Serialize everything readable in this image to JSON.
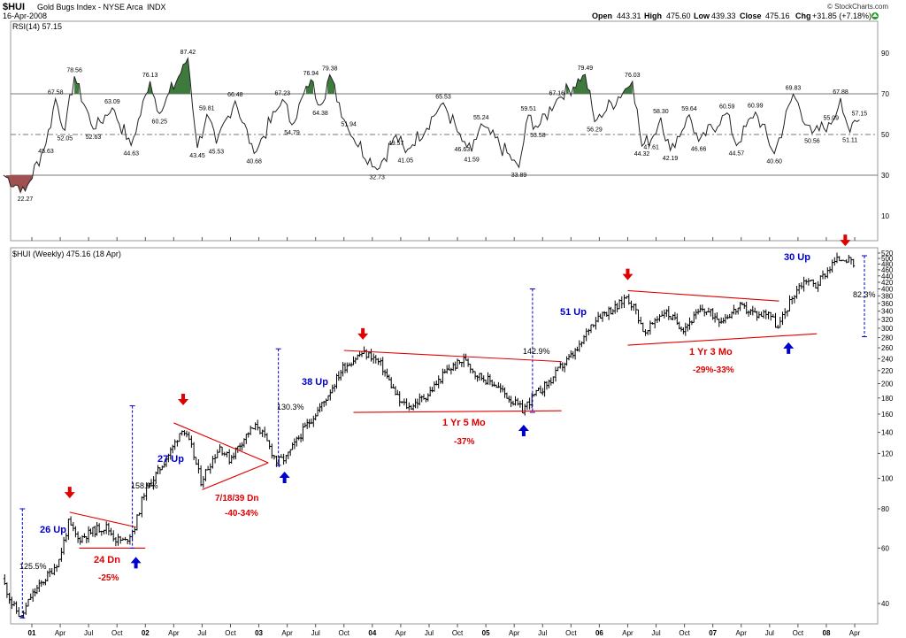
{
  "header": {
    "symbol": "$HUI",
    "name": "Gold Bugs Index - NYSE Arca",
    "exchange": "INDX",
    "date": "16-Apr-2008",
    "open_label": "Open",
    "open": "443.31",
    "high_label": "High",
    "high": "475.60",
    "low_label": "Low",
    "low": "439.33",
    "close_label": "Close",
    "close": "475.16",
    "chg_label": "Chg",
    "chg": "+31.85 (+7.18%)",
    "credit": "© StockCharts.com"
  },
  "rsi_panel": {
    "label": "RSI(14) 57.15",
    "axis_ticks": [
      "90",
      "70",
      "50",
      "30",
      "10"
    ]
  },
  "price_panel": {
    "label": "$HUI (Weekly) 475.16 (18 Apr)",
    "axis_ticks": [
      "520",
      "500",
      "480",
      "460",
      "440",
      "420",
      "400",
      "380",
      "360",
      "340",
      "320",
      "300",
      "280",
      "260",
      "240",
      "220",
      "200",
      "180",
      "160",
      "140",
      "120",
      "100",
      "80",
      "60",
      "40"
    ]
  },
  "x_ticks": [
    "01",
    "Apr",
    "Jul",
    "Oct",
    "02",
    "Apr",
    "Jul",
    "Oct",
    "03",
    "Apr",
    "Jul",
    "Oct",
    "04",
    "Apr",
    "Jul",
    "Oct",
    "05",
    "Apr",
    "Jul",
    "Oct",
    "06",
    "Apr",
    "Jul",
    "Oct",
    "07",
    "Apr",
    "Jul",
    "Oct",
    "08",
    "Apr"
  ],
  "chart_data": [
    {
      "type": "line",
      "title": "RSI(14) 57.15",
      "ylim": [
        0,
        100
      ],
      "reference_lines": [
        70,
        50,
        30
      ],
      "labeled_points": [
        {
          "date": "2001-01",
          "value": 22.27
        },
        {
          "date": "2001-02",
          "value": 45.63
        },
        {
          "date": "2001-03",
          "value": 67.58
        },
        {
          "date": "2001-04",
          "value": 52.05
        },
        {
          "date": "2001-05",
          "value": 78.56
        },
        {
          "date": "2001-07",
          "value": 52.63
        },
        {
          "date": "2001-09",
          "value": 63.09
        },
        {
          "date": "2001-11",
          "value": 44.63
        },
        {
          "date": "2002-01",
          "value": 76.13
        },
        {
          "date": "2002-02",
          "value": 60.25
        },
        {
          "date": "2002-05",
          "value": 87.42
        },
        {
          "date": "2002-06",
          "value": 43.45
        },
        {
          "date": "2002-07",
          "value": 59.81
        },
        {
          "date": "2002-08",
          "value": 45.53
        },
        {
          "date": "2002-10",
          "value": 66.48
        },
        {
          "date": "2002-12",
          "value": 40.68
        },
        {
          "date": "2003-03",
          "value": 67.23
        },
        {
          "date": "2003-04",
          "value": 54.79
        },
        {
          "date": "2003-06",
          "value": 76.94
        },
        {
          "date": "2003-07",
          "value": 64.38
        },
        {
          "date": "2003-08",
          "value": 79.38
        },
        {
          "date": "2003-10",
          "value": 51.94
        },
        {
          "date": "2004-01",
          "value": 32.73
        },
        {
          "date": "2004-03",
          "value": 49.57
        },
        {
          "date": "2004-04",
          "value": 41.05
        },
        {
          "date": "2004-08",
          "value": 65.53
        },
        {
          "date": "2004-10",
          "value": 46.63
        },
        {
          "date": "2004-11",
          "value": 41.59
        },
        {
          "date": "2004-12",
          "value": 55.24
        },
        {
          "date": "2005-04",
          "value": 33.89
        },
        {
          "date": "2005-05",
          "value": 59.51
        },
        {
          "date": "2005-06",
          "value": 53.58
        },
        {
          "date": "2005-08",
          "value": 67.16
        },
        {
          "date": "2005-11",
          "value": 79.49
        },
        {
          "date": "2005-12",
          "value": 56.29
        },
        {
          "date": "2006-04",
          "value": 76.03
        },
        {
          "date": "2006-05",
          "value": 44.32
        },
        {
          "date": "2006-06",
          "value": 47.61
        },
        {
          "date": "2006-07",
          "value": 58.3
        },
        {
          "date": "2006-08",
          "value": 42.19
        },
        {
          "date": "2006-10",
          "value": 59.64
        },
        {
          "date": "2006-11",
          "value": 46.66
        },
        {
          "date": "2007-02",
          "value": 60.59
        },
        {
          "date": "2007-03",
          "value": 44.57
        },
        {
          "date": "2007-05",
          "value": 60.99
        },
        {
          "date": "2007-07",
          "value": 40.6
        },
        {
          "date": "2007-09",
          "value": 69.83
        },
        {
          "date": "2007-11",
          "value": 50.56
        },
        {
          "date": "2008-01",
          "value": 55.09
        },
        {
          "date": "2008-02",
          "value": 67.88
        },
        {
          "date": "2008-03",
          "value": 51.11
        },
        {
          "date": "2008-04",
          "value": 57.15
        }
      ]
    },
    {
      "type": "bar",
      "title": "$HUI (Weekly) 475.16 (18 Apr)",
      "scale": "log",
      "ylim": [
        35,
        530
      ],
      "x_range": [
        "2000-10",
        "2008-04"
      ],
      "price_path": [
        {
          "date": "2000-10",
          "value": 48
        },
        {
          "date": "2000-11",
          "value": 40
        },
        {
          "date": "2000-12",
          "value": 36
        },
        {
          "date": "2001-01",
          "value": 42
        },
        {
          "date": "2001-03",
          "value": 50
        },
        {
          "date": "2001-04",
          "value": 55
        },
        {
          "date": "2001-05",
          "value": 72
        },
        {
          "date": "2001-06",
          "value": 64
        },
        {
          "date": "2001-08",
          "value": 69
        },
        {
          "date": "2001-09",
          "value": 70
        },
        {
          "date": "2001-10",
          "value": 64
        },
        {
          "date": "2001-11",
          "value": 63
        },
        {
          "date": "2001-12",
          "value": 70
        },
        {
          "date": "2002-01",
          "value": 90
        },
        {
          "date": "2002-02",
          "value": 100
        },
        {
          "date": "2002-04",
          "value": 125
        },
        {
          "date": "2002-05",
          "value": 145
        },
        {
          "date": "2002-06",
          "value": 125
        },
        {
          "date": "2002-07",
          "value": 98
        },
        {
          "date": "2002-08",
          "value": 112
        },
        {
          "date": "2002-09",
          "value": 126
        },
        {
          "date": "2002-10",
          "value": 115
        },
        {
          "date": "2002-12",
          "value": 140
        },
        {
          "date": "2003-01",
          "value": 147
        },
        {
          "date": "2003-02",
          "value": 130
        },
        {
          "date": "2003-03",
          "value": 113
        },
        {
          "date": "2003-04",
          "value": 116
        },
        {
          "date": "2003-06",
          "value": 145
        },
        {
          "date": "2003-08",
          "value": 175
        },
        {
          "date": "2003-10",
          "value": 225
        },
        {
          "date": "2003-12",
          "value": 250
        },
        {
          "date": "2004-01",
          "value": 245
        },
        {
          "date": "2004-02",
          "value": 230
        },
        {
          "date": "2004-04",
          "value": 175
        },
        {
          "date": "2004-05",
          "value": 168
        },
        {
          "date": "2004-07",
          "value": 185
        },
        {
          "date": "2004-09",
          "value": 220
        },
        {
          "date": "2004-11",
          "value": 240
        },
        {
          "date": "2004-12",
          "value": 215
        },
        {
          "date": "2005-02",
          "value": 200
        },
        {
          "date": "2005-04",
          "value": 175
        },
        {
          "date": "2005-05",
          "value": 165
        },
        {
          "date": "2005-06",
          "value": 180
        },
        {
          "date": "2005-08",
          "value": 205
        },
        {
          "date": "2005-09",
          "value": 225
        },
        {
          "date": "2005-11",
          "value": 260
        },
        {
          "date": "2005-12",
          "value": 300
        },
        {
          "date": "2006-01",
          "value": 330
        },
        {
          "date": "2006-03",
          "value": 350
        },
        {
          "date": "2006-04",
          "value": 380
        },
        {
          "date": "2006-05",
          "value": 340
        },
        {
          "date": "2006-06",
          "value": 285
        },
        {
          "date": "2006-07",
          "value": 320
        },
        {
          "date": "2006-08",
          "value": 340
        },
        {
          "date": "2006-10",
          "value": 300
        },
        {
          "date": "2006-12",
          "value": 345
        },
        {
          "date": "2007-02",
          "value": 320
        },
        {
          "date": "2007-04",
          "value": 350
        },
        {
          "date": "2007-06",
          "value": 330
        },
        {
          "date": "2007-07",
          "value": 340
        },
        {
          "date": "2007-08",
          "value": 300
        },
        {
          "date": "2007-09",
          "value": 350
        },
        {
          "date": "2007-10",
          "value": 400
        },
        {
          "date": "2007-11",
          "value": 430
        },
        {
          "date": "2007-12",
          "value": 410
        },
        {
          "date": "2008-01",
          "value": 450
        },
        {
          "date": "2008-02",
          "value": 490
        },
        {
          "date": "2008-03",
          "value": 505
        },
        {
          "date": "2008-04",
          "value": 475
        }
      ],
      "annotations": [
        {
          "text": "26 Up",
          "color": "#0000cc"
        },
        {
          "text": "125.5%",
          "color": "#000000"
        },
        {
          "text": "24 Dn",
          "color": "#e00000"
        },
        {
          "text": "-25%",
          "color": "#e00000"
        },
        {
          "text": "158.9%",
          "color": "#000000"
        },
        {
          "text": "27 Up",
          "color": "#0000cc"
        },
        {
          "text": "7/18/39 Dn",
          "color": "#e00000"
        },
        {
          "text": "-40-34%",
          "color": "#e00000"
        },
        {
          "text": "130.3%",
          "color": "#000000"
        },
        {
          "text": "38 Up",
          "color": "#0000cc"
        },
        {
          "text": "1 Yr 5 Mo",
          "color": "#e00000"
        },
        {
          "text": "-37%",
          "color": "#e00000"
        },
        {
          "text": "142.9%",
          "color": "#000000"
        },
        {
          "text": "51 Up",
          "color": "#0000cc"
        },
        {
          "text": "1 Yr 3 Mo",
          "color": "#e00000"
        },
        {
          "text": "-29%-33%",
          "color": "#e00000"
        },
        {
          "text": "30 Up",
          "color": "#0000cc"
        },
        {
          "text": "82.3%",
          "color": "#000000"
        }
      ],
      "trendlines": [
        {
          "from": {
            "date": "2001-05",
            "value": 78
          },
          "to": {
            "date": "2001-12",
            "value": 70
          }
        },
        {
          "from": {
            "date": "2001-06",
            "value": 60
          },
          "to": {
            "date": "2002-01",
            "value": 60
          }
        },
        {
          "from": {
            "date": "2002-04",
            "value": 150
          },
          "to": {
            "date": "2003-02",
            "value": 112
          }
        },
        {
          "from": {
            "date": "2002-07",
            "value": 92
          },
          "to": {
            "date": "2003-02",
            "value": 112
          }
        },
        {
          "from": {
            "date": "2003-10",
            "value": 255
          },
          "to": {
            "date": "2005-09",
            "value": 235
          }
        },
        {
          "from": {
            "date": "2003-11",
            "value": 162
          },
          "to": {
            "date": "2005-09",
            "value": 164
          }
        },
        {
          "from": {
            "date": "2006-04",
            "value": 395
          },
          "to": {
            "date": "2007-08",
            "value": 366
          }
        },
        {
          "from": {
            "date": "2006-04",
            "value": 265
          },
          "to": {
            "date": "2007-12",
            "value": 288
          }
        }
      ],
      "up_arrows": [
        "2001-12",
        "2003-04",
        "2005-05",
        "2007-09"
      ],
      "down_arrows": [
        "2001-05",
        "2002-05",
        "2003-12",
        "2006-04",
        "2008-03"
      ],
      "colors": {
        "up": "#0000cc",
        "down": "#e00000",
        "trend": "#e00000",
        "fill_over": "#3e7a3e",
        "fill_under": "#a05050"
      }
    }
  ]
}
